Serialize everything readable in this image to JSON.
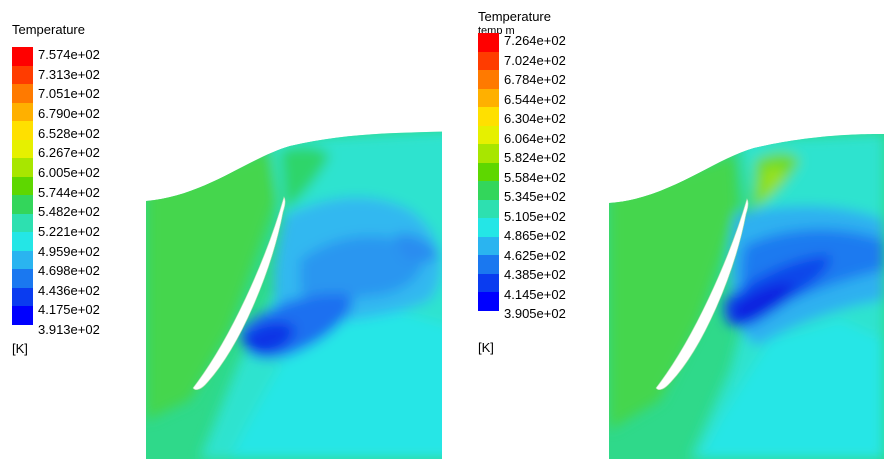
{
  "panels": [
    {
      "legend_title": "Temperature",
      "legend_subtitle": "",
      "unit": "[K]",
      "ticks": [
        "7.574e+02",
        "7.313e+02",
        "7.051e+02",
        "6.790e+02",
        "6.528e+02",
        "6.267e+02",
        "6.005e+02",
        "5.744e+02",
        "5.482e+02",
        "5.221e+02",
        "4.959e+02",
        "4.698e+02",
        "4.436e+02",
        "4.175e+02",
        "3.913e+02"
      ]
    },
    {
      "legend_title": "Temperature",
      "legend_subtitle": "temp m",
      "unit": "[K]",
      "ticks": [
        "7.264e+02",
        "7.024e+02",
        "6.784e+02",
        "6.544e+02",
        "6.304e+02",
        "6.064e+02",
        "5.824e+02",
        "5.584e+02",
        "5.345e+02",
        "5.105e+02",
        "4.865e+02",
        "4.625e+02",
        "4.385e+02",
        "4.145e+02",
        "3.905e+02"
      ]
    }
  ],
  "colormap": [
    "#ff0000",
    "#ff3c00",
    "#ff7a00",
    "#ffb000",
    "#ffe000",
    "#e6f000",
    "#a8e600",
    "#5ed700",
    "#33d65b",
    "#2de0b0",
    "#24e6e6",
    "#2ab4f0",
    "#1a78f0",
    "#0a3cf0",
    "#0000ff"
  ]
}
